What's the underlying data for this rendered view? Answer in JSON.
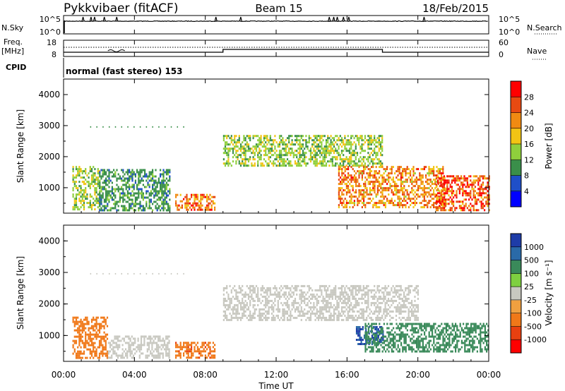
{
  "header": {
    "title": "Pykkvibaer (fitACF)",
    "beam": "Beam 15",
    "date": "18/Feb/2015"
  },
  "top_panels": {
    "nsky_label": "N.Sky",
    "nsky_ticks": [
      "10^5",
      "10^0"
    ],
    "nsearch_label": "N.Search",
    "nsearch_ticks": [
      "10^5",
      "10^0"
    ],
    "freq_label": "Freq.",
    "freq_unit": "[MHz]",
    "freq_ticks": [
      "18",
      "8"
    ],
    "nave_label": "Nave",
    "nave_ticks": [
      "60",
      "0"
    ],
    "cpid_label": "CPID",
    "cpid_text": "normal (fast stereo) 153",
    "nsky_spikes_hours": [
      1.1,
      1.55,
      1.75,
      2.3,
      3.0,
      8.6,
      10.0,
      15.0,
      15.25,
      15.45,
      15.8,
      16.1,
      20.35
    ],
    "freq_step_hours": [
      9.0,
      18.0
    ],
    "nave_level_low": 3,
    "nave_level_high": 12
  },
  "panels": [
    {
      "id": "power",
      "ylabel": "Slant Range [km]",
      "yticks": [
        "4000",
        "3000",
        "2000",
        "1000"
      ],
      "colorbar_label": "Power [dB]",
      "colorbar_ticks": [
        "28",
        "24",
        "20",
        "16",
        "12",
        "8",
        "4"
      ],
      "colors": [
        "#0000ff",
        "#1f4fc8",
        "#3a8f4a",
        "#8fcf3c",
        "#f2c414",
        "#f08a12",
        "#e84a12",
        "#ff0000"
      ]
    },
    {
      "id": "velocity",
      "ylabel": "Slant Range [km]",
      "yticks": [
        "4000",
        "3000",
        "2000",
        "1000"
      ],
      "colorbar_label": "Velocity [m s⁻¹]",
      "colorbar_ticks": [
        "1000",
        "500",
        "100",
        "25",
        "-25",
        "-100",
        "-500",
        "-1000"
      ],
      "colors": [
        "#1e3ca8",
        "#2a6aa8",
        "#3a8a5a",
        "#7ed040",
        "#c8c8c0",
        "#f0a040",
        "#f07818",
        "#e84010",
        "#ff0000"
      ]
    }
  ],
  "xaxis": {
    "label": "Time UT",
    "ticks": [
      "00:00",
      "04:00",
      "08:00",
      "12:00",
      "16:00",
      "20:00",
      "00:00"
    ]
  },
  "chart_data": [
    {
      "type": "line",
      "title": "Pykkvibaer (fitACF)",
      "subtitle": "Beam 15",
      "ylabel": "N.Sky",
      "xlabel": "",
      "xlim": [
        0,
        24
      ],
      "ylim": [
        0,
        5
      ],
      "series": [
        {
          "name": "N.Sky",
          "x": [
            0,
            0.3,
            1.0,
            9.0,
            15.0,
            16.5,
            24.0
          ],
          "values": [
            0,
            4.2,
            4.2,
            4.2,
            4.2,
            4.2,
            4.2
          ]
        }
      ]
    },
    {
      "type": "line",
      "ylabel": "Freq.",
      "xlabel": "",
      "xlim": [
        0,
        24
      ],
      "ylim": [
        8,
        18
      ],
      "series": [
        {
          "name": "Freq.",
          "x": [
            0,
            9.0,
            9.0,
            18.0,
            18.0,
            24.0
          ],
          "values": [
            9.2,
            9.2,
            10.3,
            10.3,
            9.2,
            9.2
          ]
        }
      ]
    },
    {
      "type": "heatmap",
      "ylabel": "Slant Range [km]",
      "xlabel": "",
      "xlim": [
        0,
        24
      ],
      "ylim": [
        180,
        4500
      ],
      "colorbar": {
        "label": "Power [dB]",
        "ticks": [
          28,
          24,
          20,
          16,
          12,
          8,
          4
        ]
      },
      "regions": [
        {
          "x": [
            0.5,
            2.0
          ],
          "y": [
            300,
            1700
          ],
          "value": 14
        },
        {
          "x": [
            2.0,
            6.0
          ],
          "y": [
            300,
            1600
          ],
          "value": 10
        },
        {
          "x": [
            6.3,
            8.5
          ],
          "y": [
            300,
            800
          ],
          "value": 24
        },
        {
          "x": [
            9.0,
            18.0
          ],
          "y": [
            1700,
            2700
          ],
          "value": 14
        },
        {
          "x": [
            15.5,
            21.5
          ],
          "y": [
            400,
            1700
          ],
          "value": 22
        },
        {
          "x": [
            21.0,
            24.0
          ],
          "y": [
            300,
            1400
          ],
          "value": 26
        }
      ]
    },
    {
      "type": "heatmap",
      "ylabel": "Slant Range [km]",
      "xlabel": "Time UT",
      "xlim": [
        0,
        24
      ],
      "ylim": [
        180,
        4500
      ],
      "colorbar": {
        "label": "Velocity [m s⁻¹]",
        "ticks": [
          1000,
          500,
          100,
          25,
          -25,
          -100,
          -500,
          -1000
        ]
      },
      "regions": [
        {
          "x": [
            0.5,
            2.5
          ],
          "y": [
            300,
            1600
          ],
          "value": -300
        },
        {
          "x": [
            2.5,
            6.0
          ],
          "y": [
            300,
            1000
          ],
          "value": 0
        },
        {
          "x": [
            6.3,
            8.5
          ],
          "y": [
            300,
            800
          ],
          "value": -400
        },
        {
          "x": [
            9.0,
            20.0
          ],
          "y": [
            1500,
            2600
          ],
          "value": 0
        },
        {
          "x": [
            16.5,
            18.0
          ],
          "y": [
            700,
            1300
          ],
          "value": 800
        },
        {
          "x": [
            17.0,
            24.0
          ],
          "y": [
            500,
            1400
          ],
          "value": 150
        }
      ]
    }
  ]
}
